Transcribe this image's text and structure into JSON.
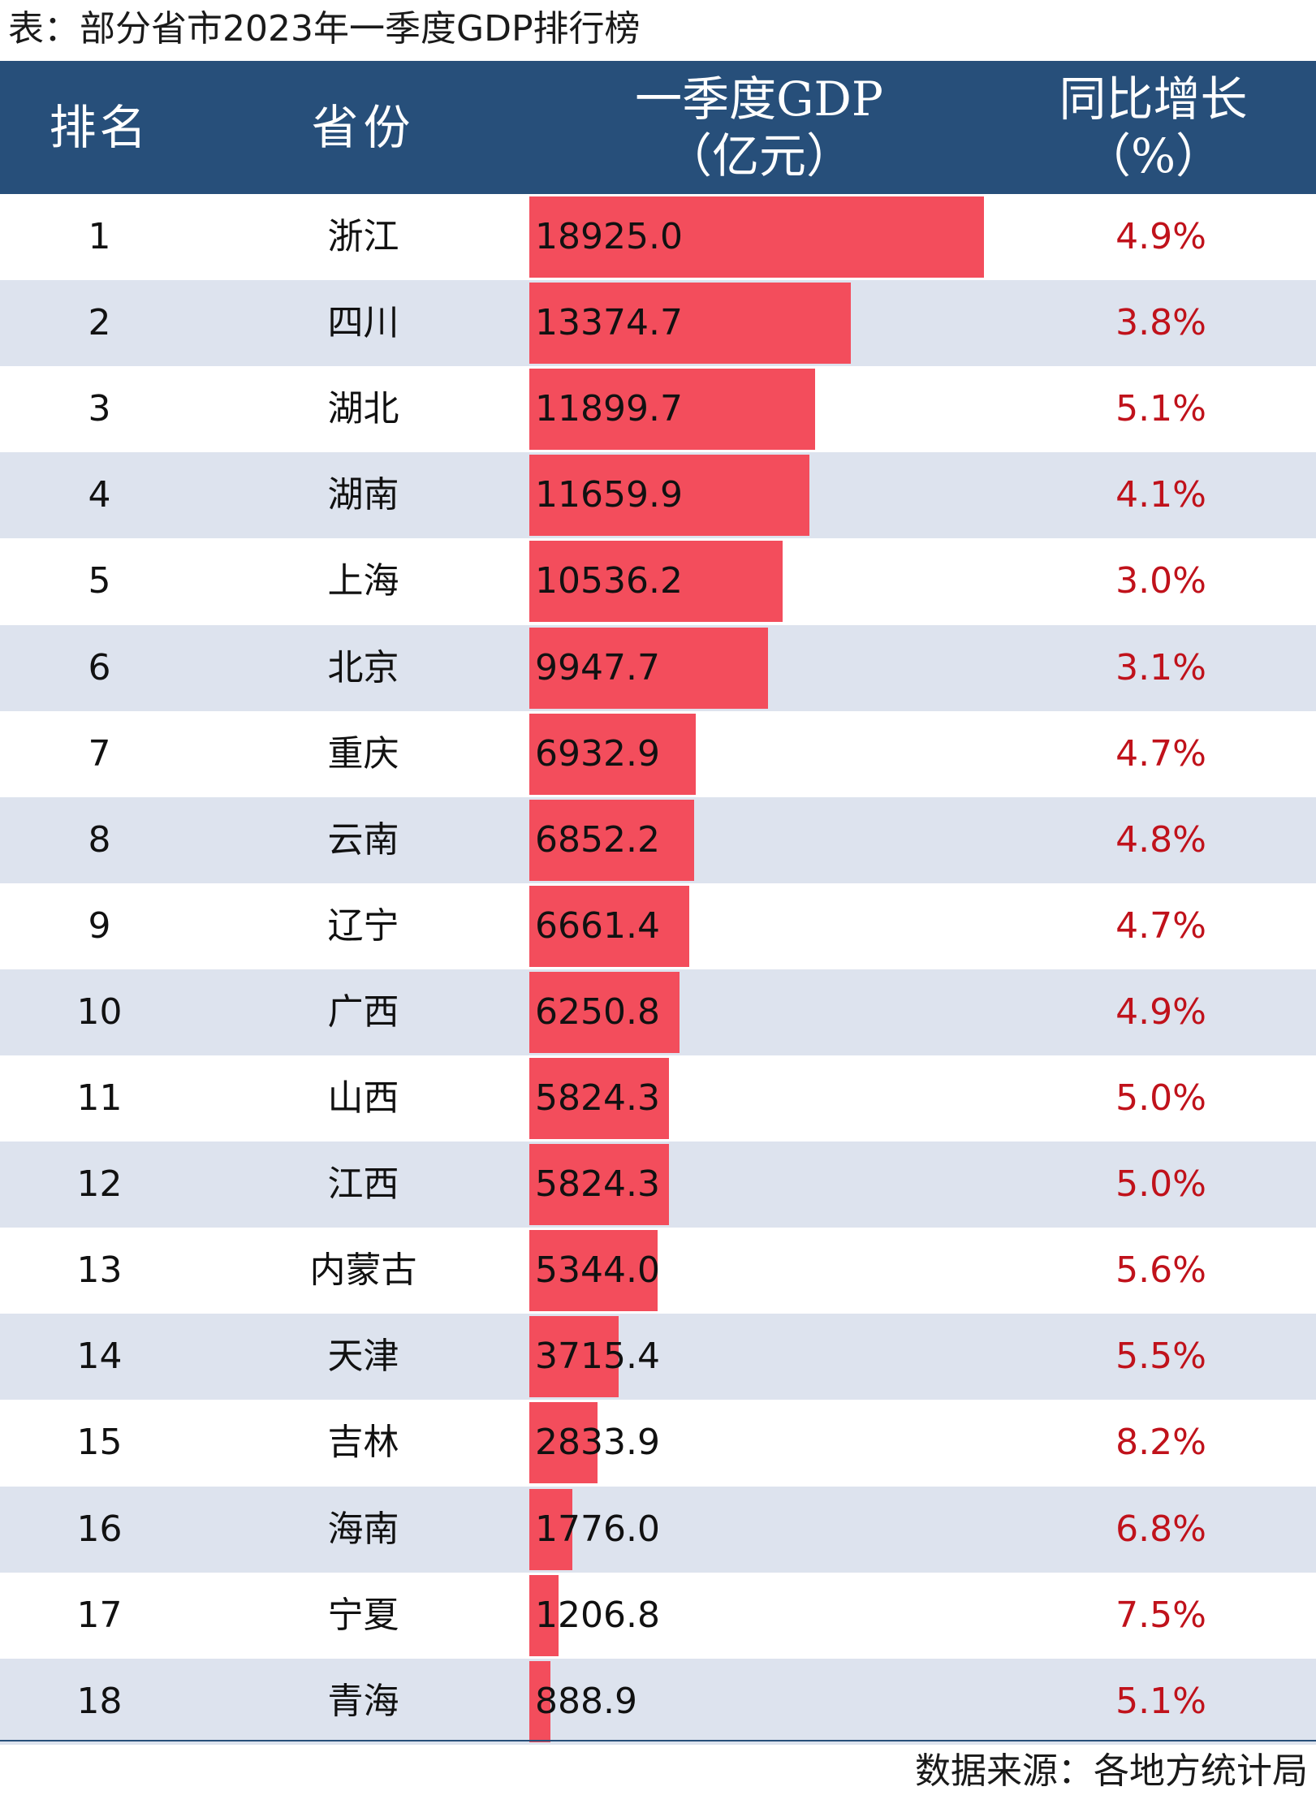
{
  "title": "表：部分省市2023年一季度GDP排行榜",
  "headers": {
    "rank": "排名",
    "province": "省份",
    "gdp_line1": "一季度GDP",
    "gdp_line2": "（亿元）",
    "growth_line1": "同比增长",
    "growth_line2": "（%）"
  },
  "source": "数据来源：各地方统计局",
  "colors": {
    "header_bg": "#274f7a",
    "bar": "#f34d5c",
    "growth_text": "#c0121b",
    "stripe": "#dde3ee"
  },
  "chart_data": {
    "type": "table",
    "columns": [
      "排名",
      "省份",
      "一季度GDP（亿元）",
      "同比增长（%）"
    ],
    "rows": [
      {
        "rank": "1",
        "province": "浙江",
        "gdp": 18925.0,
        "gdp_label": "18925.0",
        "growth": "4.9%"
      },
      {
        "rank": "2",
        "province": "四川",
        "gdp": 13374.7,
        "gdp_label": "13374.7",
        "growth": "3.8%"
      },
      {
        "rank": "3",
        "province": "湖北",
        "gdp": 11899.7,
        "gdp_label": "11899.7",
        "growth": "5.1%"
      },
      {
        "rank": "4",
        "province": "湖南",
        "gdp": 11659.9,
        "gdp_label": "11659.9",
        "growth": "4.1%"
      },
      {
        "rank": "5",
        "province": "上海",
        "gdp": 10536.2,
        "gdp_label": "10536.2",
        "growth": "3.0%"
      },
      {
        "rank": "6",
        "province": "北京",
        "gdp": 9947.7,
        "gdp_label": "9947.7",
        "growth": "3.1%"
      },
      {
        "rank": "7",
        "province": "重庆",
        "gdp": 6932.9,
        "gdp_label": "6932.9",
        "growth": "4.7%"
      },
      {
        "rank": "8",
        "province": "云南",
        "gdp": 6852.2,
        "gdp_label": "6852.2",
        "growth": "4.8%"
      },
      {
        "rank": "9",
        "province": "辽宁",
        "gdp": 6661.4,
        "gdp_label": "6661.4",
        "growth": "4.7%"
      },
      {
        "rank": "10",
        "province": "广西",
        "gdp": 6250.8,
        "gdp_label": "6250.8",
        "growth": "4.9%"
      },
      {
        "rank": "11",
        "province": "山西",
        "gdp": 5824.3,
        "gdp_label": "5824.3",
        "growth": "5.0%"
      },
      {
        "rank": "12",
        "province": "江西",
        "gdp": 5824.3,
        "gdp_label": "5824.3",
        "growth": "5.0%"
      },
      {
        "rank": "13",
        "province": "内蒙古",
        "gdp": 5344.0,
        "gdp_label": "5344.0",
        "growth": "5.6%"
      },
      {
        "rank": "14",
        "province": "天津",
        "gdp": 3715.4,
        "gdp_label": "3715.4",
        "growth": "5.5%"
      },
      {
        "rank": "15",
        "province": "吉林",
        "gdp": 2833.9,
        "gdp_label": "2833.9",
        "growth": "8.2%"
      },
      {
        "rank": "16",
        "province": "海南",
        "gdp": 1776.0,
        "gdp_label": "1776.0",
        "growth": "6.8%"
      },
      {
        "rank": "17",
        "province": "宁夏",
        "gdp": 1206.8,
        "gdp_label": "1206.8",
        "growth": "7.5%"
      },
      {
        "rank": "18",
        "province": "青海",
        "gdp": 888.9,
        "gdp_label": "888.9",
        "growth": "5.1%"
      }
    ]
  }
}
